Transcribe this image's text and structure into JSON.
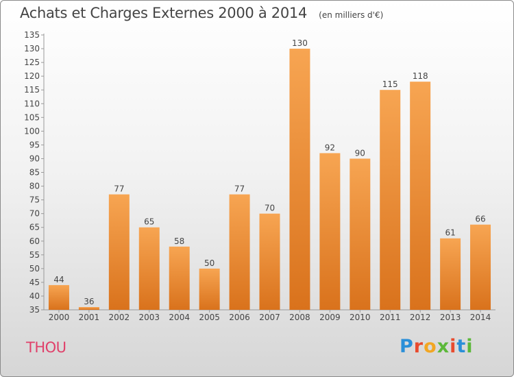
{
  "header": {
    "title": "Achats et Charges Externes 2000 à 2014",
    "unit_note": "(en milliers d'€)"
  },
  "footer": {
    "commune": "THOU",
    "logo_text": "Proxiti",
    "logo_colors": [
      "#2a8fd8",
      "#e84b2e",
      "#f2a623",
      "#5cb83a",
      "#e84b2e",
      "#2a8fd8",
      "#5cb83a"
    ]
  },
  "colors": {
    "bar_top": "#f7a552",
    "bar_bottom": "#d9721c",
    "axis": "#999999",
    "text": "#444444"
  },
  "chart_data": {
    "type": "bar",
    "title": "Achats et Charges Externes 2000 à 2014",
    "xlabel": "",
    "ylabel": "",
    "categories": [
      "2000",
      "2001",
      "2002",
      "2003",
      "2004",
      "2005",
      "2006",
      "2007",
      "2008",
      "2009",
      "2010",
      "2011",
      "2012",
      "2013",
      "2014"
    ],
    "values": [
      44,
      36,
      77,
      65,
      58,
      50,
      77,
      70,
      130,
      92,
      90,
      115,
      118,
      61,
      66
    ],
    "ylim": [
      35,
      135
    ],
    "yticks": [
      35,
      40,
      45,
      50,
      55,
      60,
      65,
      70,
      75,
      80,
      85,
      90,
      95,
      100,
      105,
      110,
      115,
      120,
      125,
      130,
      135
    ],
    "grid": false,
    "legend": "none"
  }
}
